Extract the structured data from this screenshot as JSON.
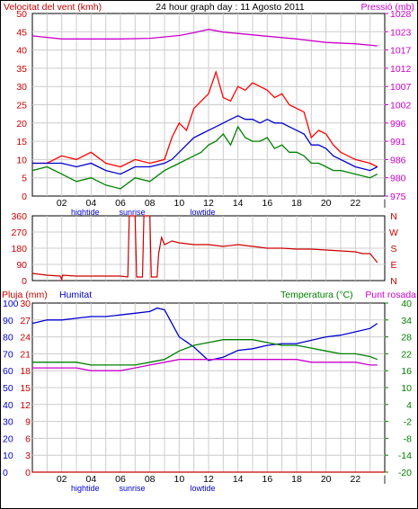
{
  "chart_data": [
    {
      "type": "line",
      "panel": "wind-pressure",
      "title": "24 hour graph day : 11 Agosto 2011",
      "ylabel_left": "Velocitat del vent (kmh)",
      "ylabel_right": "Pressió (mb)",
      "ylim_left": [
        0,
        50
      ],
      "ylim_right": [
        975,
        1028
      ],
      "yticks_left": [
        "0",
        "5",
        "10",
        "15",
        "20",
        "25",
        "30",
        "35",
        "40",
        "45",
        "50"
      ],
      "yticks_right": [
        "975",
        "980",
        "986",
        "991",
        "996",
        "1002",
        "1007",
        "1012",
        "1017",
        "1023",
        "1028"
      ],
      "xlim": [
        0,
        24
      ],
      "xticks": [
        "02",
        "04",
        "06",
        "08",
        "10",
        "12",
        "14",
        "16",
        "18",
        "20",
        "22",
        "|"
      ],
      "x_annotations": [
        {
          "text": "hightide",
          "x": 3.6
        },
        {
          "text": "sunrise",
          "x": 6.8
        },
        {
          "text": "lowtide",
          "x": 11.6
        }
      ],
      "series": [
        {
          "color": "#ff0000",
          "x": [
            0,
            1,
            2,
            3,
            4,
            5,
            6,
            7,
            8,
            9,
            9.5,
            10,
            10.5,
            11,
            11.5,
            12,
            12.5,
            13,
            13.5,
            14,
            14.5,
            15,
            15.5,
            16,
            16.5,
            17,
            17.5,
            18,
            18.5,
            19,
            19.5,
            20,
            20.5,
            21,
            22,
            23,
            23.5
          ],
          "y": [
            9,
            9,
            11,
            10,
            12,
            9,
            8,
            10,
            9,
            10,
            16,
            20,
            18,
            24,
            26,
            28,
            34,
            27,
            26,
            30,
            29,
            31,
            30,
            29,
            27,
            28,
            25,
            24,
            23,
            16,
            18,
            17,
            14,
            12,
            10,
            9,
            8
          ]
        },
        {
          "color": "#0000cc",
          "x": [
            0,
            1,
            2,
            3,
            4,
            5,
            6,
            7,
            8,
            9,
            9.5,
            10,
            10.5,
            11,
            11.5,
            12,
            12.5,
            13,
            13.5,
            14,
            14.5,
            15,
            15.5,
            16,
            16.5,
            17,
            17.5,
            18,
            18.5,
            19,
            19.5,
            20,
            20.5,
            21,
            22,
            23,
            23.5
          ],
          "y": [
            9,
            9,
            9,
            8,
            9,
            7,
            6,
            8,
            8,
            9,
            10,
            12,
            14,
            16,
            17,
            18,
            19,
            20,
            21,
            22,
            21,
            21,
            20,
            21,
            20,
            20,
            19,
            18,
            17,
            14,
            14,
            13,
            11,
            10,
            8,
            7,
            8
          ]
        },
        {
          "color": "#008000",
          "x": [
            0,
            1,
            2,
            3,
            4,
            5,
            6,
            7,
            8,
            9,
            9.5,
            10,
            10.5,
            11,
            11.5,
            12,
            12.5,
            13,
            13.5,
            14,
            14.5,
            15,
            15.5,
            16,
            16.5,
            17,
            17.5,
            18,
            18.5,
            19,
            19.5,
            20,
            20.5,
            21,
            22,
            23,
            23.5
          ],
          "y": [
            7,
            8,
            6,
            4,
            5,
            3,
            2,
            5,
            4,
            7,
            8,
            9,
            10,
            11,
            12,
            14,
            15,
            17,
            14,
            19,
            16,
            15,
            15,
            16,
            13,
            14,
            12,
            12,
            11,
            9,
            9,
            8,
            7,
            7,
            6,
            5,
            6
          ]
        },
        {
          "color": "#cc00cc",
          "axis": "right",
          "x": [
            0,
            2,
            4,
            6,
            8,
            10,
            11,
            12,
            13,
            14,
            16,
            18,
            20,
            22,
            23.5
          ],
          "y": [
            1021.5,
            1020.6,
            1020.6,
            1020.6,
            1020.8,
            1021.6,
            1022.4,
            1023.4,
            1022.6,
            1022.2,
            1021.4,
            1020.6,
            1019.6,
            1019.2,
            1018.6
          ]
        }
      ]
    },
    {
      "type": "line",
      "panel": "wind-direction",
      "ylim": [
        0,
        360
      ],
      "yticks": [
        "0",
        "90",
        "180",
        "270",
        "360"
      ],
      "right_labels": [
        "N",
        "W",
        "S",
        "E",
        "N"
      ],
      "xlim": [
        0,
        24
      ],
      "series": [
        {
          "color": "#cc0000",
          "x": [
            0,
            1,
            1.9,
            2,
            2.05,
            3,
            4,
            5,
            6,
            6.5,
            6.6,
            7,
            7.1,
            7.5,
            7.6,
            8,
            8.1,
            8.5,
            8.6,
            8.8,
            9,
            9.5,
            10,
            11,
            12,
            13,
            14,
            15,
            16,
            17,
            18,
            19,
            20,
            21,
            22,
            22.5,
            23,
            23.5
          ],
          "y": [
            40,
            30,
            25,
            5,
            30,
            25,
            25,
            25,
            25,
            20,
            360,
            360,
            20,
            20,
            360,
            360,
            20,
            20,
            150,
            240,
            200,
            220,
            210,
            200,
            200,
            190,
            200,
            190,
            180,
            180,
            175,
            175,
            170,
            165,
            160,
            150,
            150,
            100
          ]
        }
      ]
    },
    {
      "type": "line",
      "panel": "rain-humidity-temperature",
      "ylabel_left": "Pluja (mm)",
      "ylabel_left2": "Humitat",
      "ylabel_right": "Temperatura (°C)",
      "ylabel_right2": "Punt rosada",
      "ylim_left_rain": [
        0,
        30
      ],
      "ylim_left_humidity": [
        0,
        100
      ],
      "ylim_right": [
        -20,
        40
      ],
      "yticks_left_rain": [
        "0",
        "3",
        "6",
        "9",
        "12",
        "15",
        "18",
        "21",
        "24",
        "27",
        "30"
      ],
      "yticks_left_humidity": [
        "0",
        "10",
        "20",
        "30",
        "40",
        "50",
        "60",
        "70",
        "80",
        "90",
        "100"
      ],
      "yticks_right": [
        "-20",
        "-14",
        "-8",
        "-2",
        "4",
        "10",
        "16",
        "22",
        "28",
        "34",
        "40"
      ],
      "xlim": [
        0,
        24
      ],
      "xticks": [
        "02",
        "04",
        "06",
        "08",
        "10",
        "12",
        "14",
        "16",
        "18",
        "20",
        "22",
        "|"
      ],
      "x_annotations": [
        {
          "text": "hightide",
          "x": 3.6
        },
        {
          "text": "sunrise",
          "x": 6.8
        },
        {
          "text": "lowtide",
          "x": 11.6
        }
      ],
      "series": [
        {
          "color": "#0000cc",
          "axis": "humidity",
          "x": [
            0,
            1,
            2,
            3,
            4,
            5,
            6,
            7,
            8,
            8.5,
            9,
            9.5,
            10,
            10.5,
            11,
            11.5,
            12,
            12.5,
            13,
            14,
            15,
            16,
            17,
            18,
            19,
            20,
            21,
            22,
            23,
            23.5
          ],
          "y": [
            88,
            90,
            90,
            91,
            92,
            92,
            93,
            94,
            95,
            97,
            96,
            88,
            80,
            77,
            74,
            70,
            66,
            67,
            68,
            72,
            73,
            75,
            76,
            76,
            78,
            80,
            81,
            83,
            85,
            88
          ]
        },
        {
          "color": "#008000",
          "axis": "right",
          "x": [
            0,
            1,
            2,
            3,
            4,
            5,
            6,
            7,
            8,
            9,
            10,
            11,
            12,
            13,
            14,
            15,
            16,
            17,
            18,
            19,
            20,
            21,
            22,
            23,
            23.5
          ],
          "y": [
            19,
            19,
            19,
            19,
            18,
            18,
            18,
            18,
            19,
            20,
            23,
            25,
            26,
            27,
            27,
            27,
            26,
            25,
            25,
            24,
            23,
            22,
            22,
            21,
            20
          ]
        },
        {
          "color": "#cc00cc",
          "axis": "right",
          "x": [
            0,
            1,
            2,
            3,
            4,
            5,
            6,
            7,
            8,
            9,
            10,
            11,
            12,
            13,
            14,
            15,
            16,
            17,
            18,
            19,
            20,
            21,
            22,
            23,
            23.5
          ],
          "y": [
            17,
            17,
            17,
            17,
            16,
            16,
            16,
            17,
            18,
            19,
            20,
            20,
            20,
            20,
            20,
            20,
            20,
            20,
            20,
            19,
            19,
            19,
            19,
            18,
            18
          ]
        },
        {
          "color": "#cc0000",
          "axis": "rain",
          "x": [
            0,
            24
          ],
          "y": [
            0,
            0
          ]
        }
      ]
    }
  ]
}
